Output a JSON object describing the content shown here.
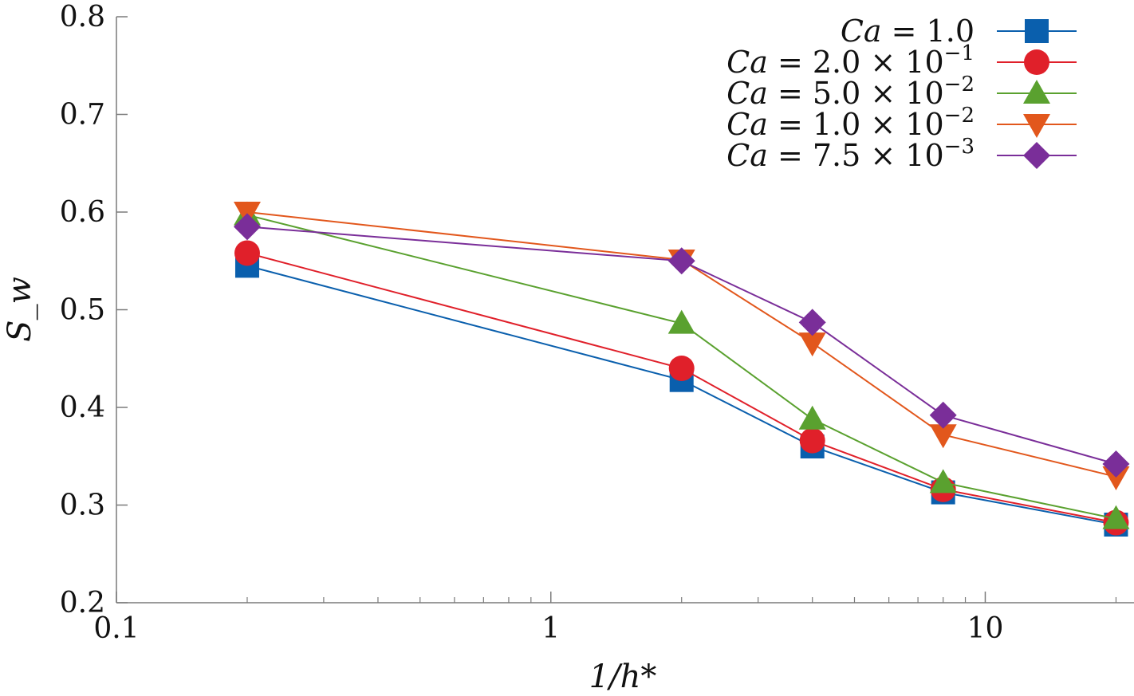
{
  "chart_data": {
    "type": "line",
    "x_scale": "log",
    "xlabel": "1/h*",
    "ylabel": "S_w",
    "xlim": [
      0.1,
      22
    ],
    "ylim": [
      0.2,
      0.8
    ],
    "x_ticks": [
      {
        "value": 0.1,
        "label": "0.1"
      },
      {
        "value": 1,
        "label": "1"
      },
      {
        "value": 10,
        "label": "10"
      }
    ],
    "y_ticks": [
      {
        "value": 0.2,
        "label": "0.2"
      },
      {
        "value": 0.3,
        "label": "0.3"
      },
      {
        "value": 0.4,
        "label": "0.4"
      },
      {
        "value": 0.5,
        "label": "0.5"
      },
      {
        "value": 0.6,
        "label": "0.6"
      },
      {
        "value": 0.7,
        "label": "0.7"
      },
      {
        "value": 0.8,
        "label": "0.8"
      }
    ],
    "x": [
      0.2,
      2,
      4,
      8,
      20
    ],
    "legend_position": "top-right",
    "series": [
      {
        "name": "Ca = 1.0",
        "name_prefix": "Ca",
        "name_value": " = 1.0",
        "name_exp": "",
        "color": "#0a5fad",
        "marker": "square",
        "values": [
          0.545,
          0.428,
          0.36,
          0.313,
          0.28
        ]
      },
      {
        "name": "Ca = 2.0 × 10^−1",
        "name_prefix": "Ca",
        "name_value": " = 2.0 × 10",
        "name_exp": "−1",
        "color": "#e0202a",
        "marker": "circle",
        "values": [
          0.558,
          0.44,
          0.366,
          0.316,
          0.282
        ]
      },
      {
        "name": "Ca = 5.0 × 10^−2",
        "name_prefix": "Ca",
        "name_value": " = 5.0 × 10",
        "name_exp": "−2",
        "color": "#5aa12f",
        "marker": "triangle-up",
        "values": [
          0.597,
          0.486,
          0.388,
          0.323,
          0.286
        ]
      },
      {
        "name": "Ca = 1.0 × 10^−2",
        "name_prefix": "Ca",
        "name_value": " = 1.0 × 10",
        "name_exp": "−2",
        "color": "#e2571c",
        "marker": "triangle-down",
        "values": [
          0.6,
          0.551,
          0.466,
          0.372,
          0.329
        ]
      },
      {
        "name": "Ca = 7.5 × 10^−3",
        "name_prefix": "Ca",
        "name_value": " = 7.5 × 10",
        "name_exp": "−3",
        "color": "#7a2e99",
        "marker": "diamond",
        "values": [
          0.585,
          0.55,
          0.487,
          0.392,
          0.342
        ]
      }
    ]
  }
}
